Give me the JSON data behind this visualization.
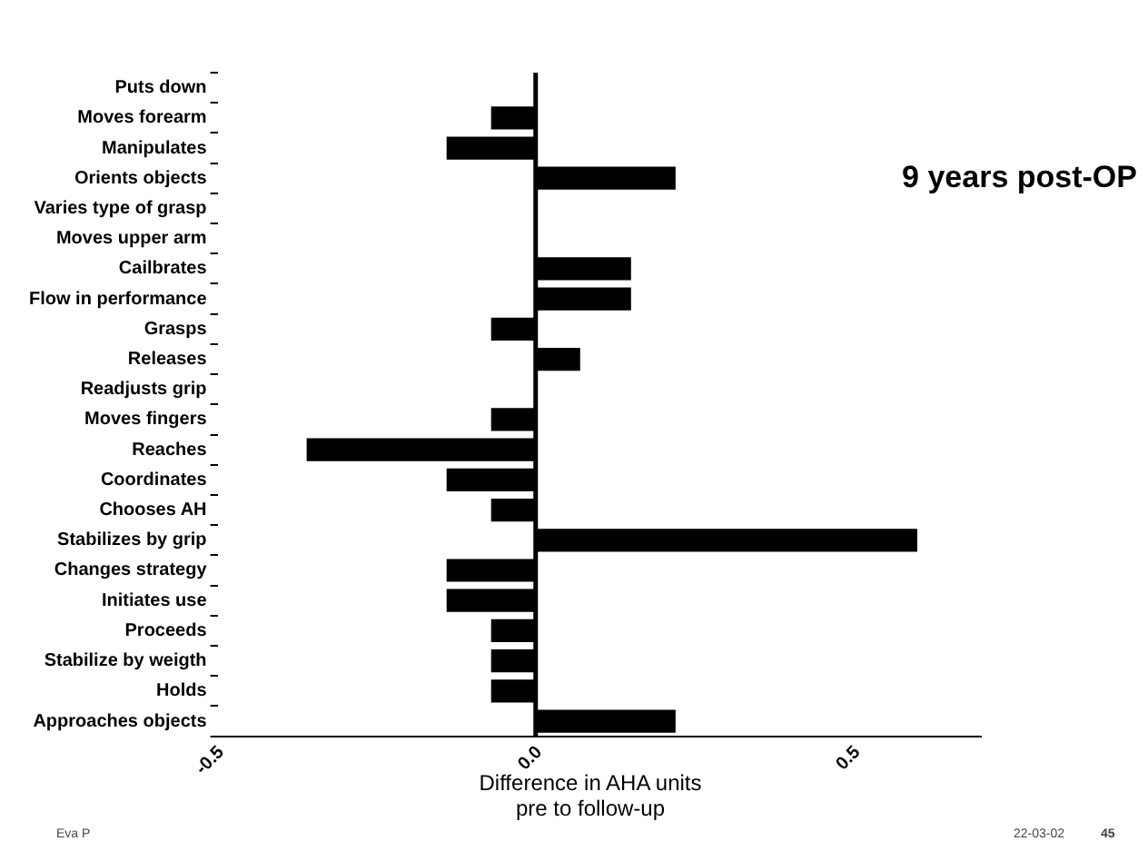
{
  "chart_data": {
    "type": "bar",
    "orientation": "horizontal",
    "title": "9 years post-OP",
    "xlabel": "Difference in AHA units\npre to follow-up",
    "categories": [
      "Puts down",
      "Moves forearm",
      "Manipulates",
      "Orients objects",
      "Varies type of grasp",
      "Moves upper arm",
      "Cailbrates",
      "Flow in performance",
      "Grasps",
      "Releases",
      "Readjusts grip",
      "Moves fingers",
      "Reaches",
      "Coordinates",
      "Chooses AH",
      "Stabilizes by grip",
      "Changes strategy",
      "Initiates use",
      "Proceeds",
      "Stabilize by weigth",
      "Holds",
      "Approaches objects"
    ],
    "values": [
      0,
      -0.07,
      -0.14,
      0.22,
      0,
      0,
      0.15,
      0.15,
      -0.07,
      0.07,
      0,
      -0.07,
      -0.36,
      -0.14,
      -0.07,
      0.6,
      -0.14,
      -0.14,
      -0.07,
      -0.07,
      -0.07,
      0.22
    ],
    "color": "#000000",
    "xlim": [
      -0.5,
      0.7
    ],
    "xticks": [
      {
        "value": -0.5,
        "label": "-0.5"
      },
      {
        "value": 0,
        "label": "0.0"
      },
      {
        "value": 0.5,
        "label": "0.5"
      }
    ],
    "grid": false,
    "legend": false,
    "ref_lines": [
      {
        "axis": "x",
        "value": 0,
        "color": "#000000"
      }
    ],
    "annotations": [
      "Eva P",
      "22-03-02",
      "45"
    ]
  }
}
